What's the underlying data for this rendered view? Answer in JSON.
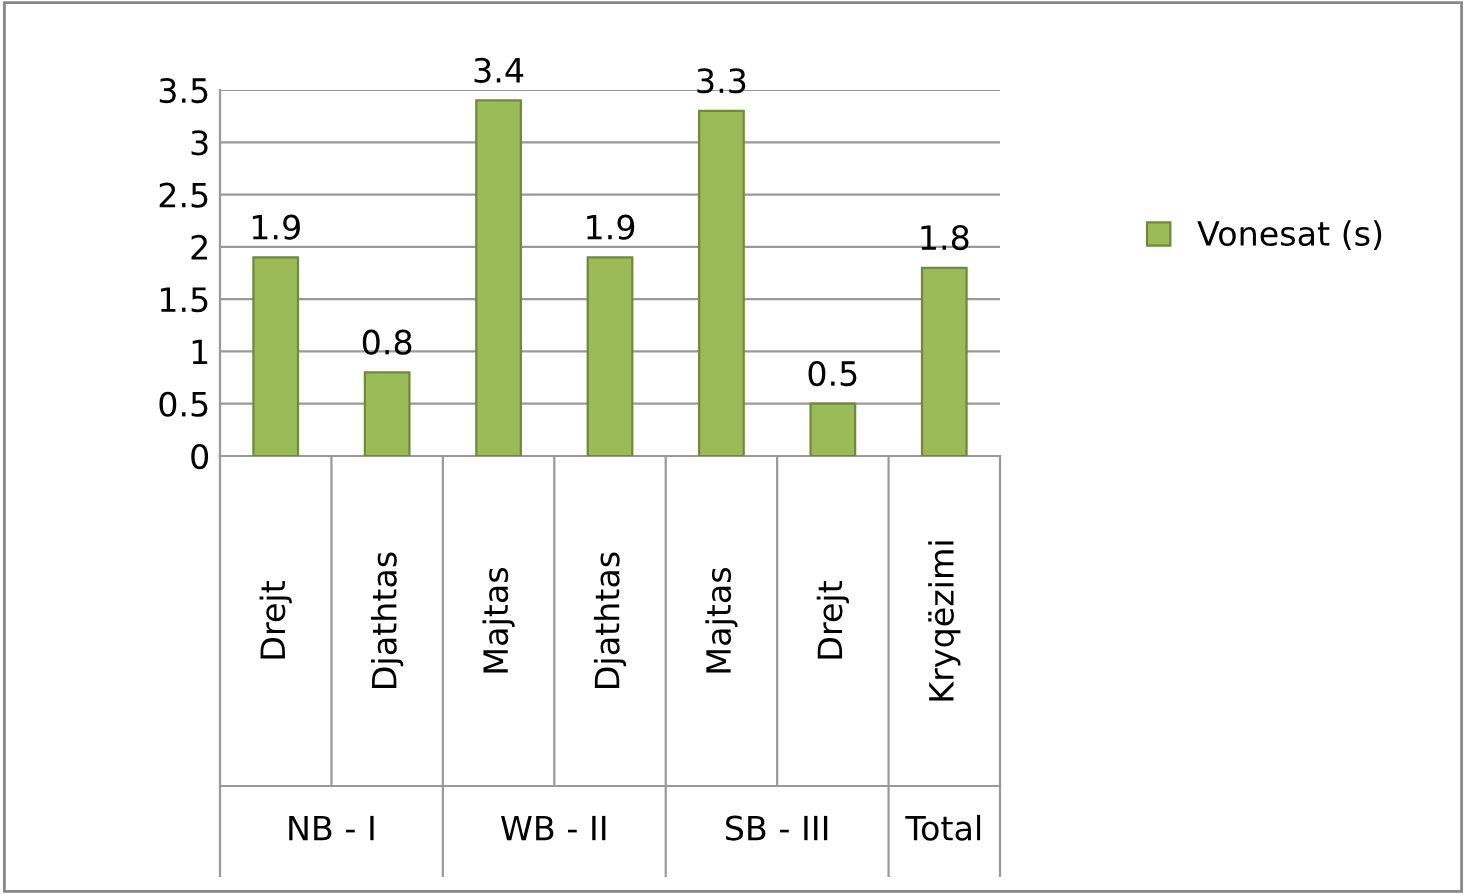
{
  "chart_data": {
    "type": "bar",
    "categories": [
      "Drejt",
      "Djathtas",
      "Majtas",
      "Djathtas",
      "Majtas",
      "Drejt",
      "Kryqëzimi"
    ],
    "series": [
      {
        "name": "Vonesat (s)",
        "color": "#9bbb59",
        "values": [
          1.9,
          0.8,
          3.4,
          1.9,
          3.3,
          0.5,
          1.8
        ]
      }
    ],
    "annotations": [
      "NB - I",
      "WB - II",
      "SB - III",
      "Total"
    ],
    "ylim": [
      0,
      3.5
    ],
    "yticks": [
      0,
      0.5,
      1,
      1.5,
      2,
      2.5,
      3,
      3.5
    ],
    "grid": "y",
    "legend": "right",
    "data_labels": true
  }
}
